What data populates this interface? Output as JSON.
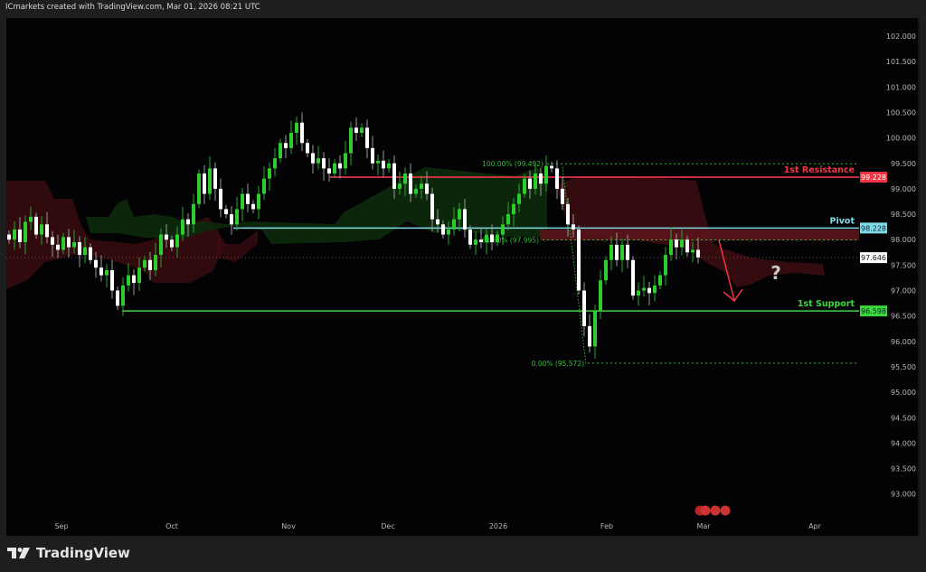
{
  "header": {
    "text": "ICmarkets created with TradingView.com, Mar 01, 2026 08:21 UTC"
  },
  "logo": {
    "text": "TradingView"
  },
  "colors": {
    "bull": "#2ecc2e",
    "bear": "#ffffff",
    "resistance": "#f23645",
    "pivot": "#7fdbe6",
    "support": "#3ad93a",
    "fib": "#2fbf2f",
    "cloud_bear": "#3a0c10",
    "cloud_bull": "#0c2a0c",
    "arrow": "#f23645"
  },
  "chart_data": {
    "type": "candlestick",
    "y_ticks": [
      "102.000",
      "101.500",
      "101.000",
      "100.500",
      "100.000",
      "99.500",
      "99.000",
      "98.500",
      "98.000",
      "97.500",
      "97.000",
      "96.500",
      "96.000",
      "95.500",
      "95.000",
      "94.500",
      "94.000",
      "93.500",
      "93.000"
    ],
    "ylim": [
      92.8,
      102.3
    ],
    "x_ticks": [
      "Sep",
      "Oct",
      "Nov",
      "Dec",
      "2026",
      "Feb",
      "Mar",
      "Apr"
    ],
    "closes": [
      98.0,
      98.2,
      97.95,
      98.35,
      98.45,
      98.1,
      98.3,
      98.05,
      97.9,
      97.8,
      98.05,
      97.85,
      97.95,
      97.7,
      97.85,
      97.6,
      97.45,
      97.3,
      97.4,
      97.0,
      96.7,
      97.1,
      97.3,
      97.15,
      97.45,
      97.6,
      97.4,
      97.7,
      98.1,
      98.0,
      97.85,
      98.1,
      98.4,
      98.3,
      98.7,
      99.3,
      98.9,
      99.4,
      99.0,
      98.6,
      98.5,
      98.3,
      98.6,
      98.9,
      98.7,
      98.6,
      98.9,
      99.2,
      99.4,
      99.6,
      99.9,
      99.8,
      100.1,
      100.3,
      99.9,
      99.7,
      99.5,
      99.6,
      99.4,
      99.3,
      99.5,
      99.4,
      99.7,
      100.2,
      100.1,
      100.2,
      99.8,
      99.5,
      99.55,
      99.4,
      99.5,
      99.0,
      99.1,
      99.3,
      98.9,
      99.0,
      99.1,
      98.9,
      98.4,
      98.3,
      98.1,
      98.2,
      98.4,
      98.6,
      98.2,
      97.9,
      98.0,
      97.95,
      98.1,
      97.95,
      98.1,
      98.3,
      98.5,
      98.7,
      98.9,
      99.2,
      99.0,
      99.3,
      99.1,
      99.45,
      99.4,
      99.0,
      98.7,
      98.3,
      98.2,
      97.0,
      96.3,
      95.9,
      96.6,
      97.2,
      97.6,
      97.9,
      97.6,
      97.9,
      97.6,
      96.9,
      97.0,
      97.05,
      96.95,
      97.1,
      97.3,
      97.7,
      98.0,
      97.85,
      98.0,
      97.75,
      97.8,
      97.65
    ],
    "current_price": {
      "value": 97.646,
      "label": "97.646"
    },
    "levels": [
      {
        "name": "1st Resistance",
        "value": 99.228,
        "label": "99.228"
      },
      {
        "name": "Pivot",
        "value": 98.228,
        "label": "98.228"
      },
      {
        "name": "1st Support",
        "value": 96.598,
        "label": "96.598"
      }
    ],
    "fibonacci": [
      {
        "label": "100.00% (99.492)",
        "value": 99.492
      },
      {
        "label": "61.80% (97.995)",
        "value": 97.995
      },
      {
        "label": "0.00% (95.572)",
        "value": 95.572
      }
    ],
    "annotation": {
      "text": "?"
    }
  }
}
